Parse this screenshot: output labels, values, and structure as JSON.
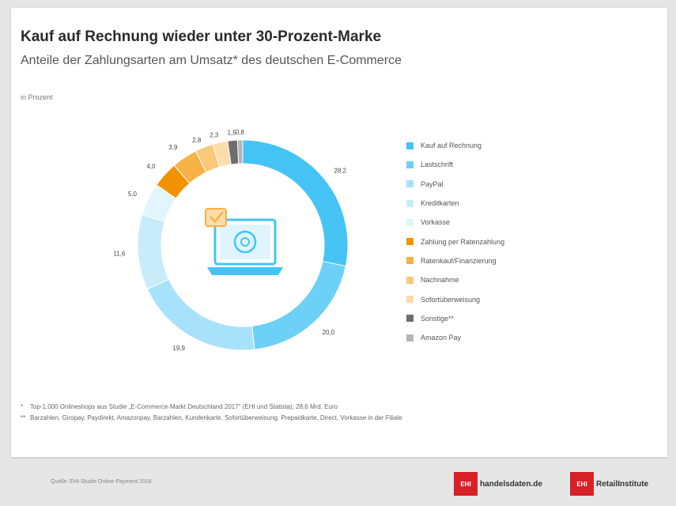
{
  "title": "Kauf auf Rechnung wieder unter 30-Prozent-Marke",
  "subtitle": "Anteile der Zahlungsarten am Umsatz* des deutschen E-Commerce",
  "unit_label": "in Prozent",
  "footnotes": [
    {
      "mark": "*",
      "text": "Top-1.000 Onlineshops aus Studie „E-Commerce-Markt Deutschland 2017“ (EHI und Statista); 28,6 Mrd. Euro"
    },
    {
      "mark": "**",
      "text": "Barzahlen, Giropay, Paydirekt, Amazonpay, Barzahlen, Kundenkarte, Sofortüberweisung, Prepaidkarte, Direct, Vorkasse in der Filiale"
    }
  ],
  "source": "Quelle: EHI-Studie Online-Payment 2018",
  "brands": [
    {
      "box": "EHI",
      "name": "handelsdaten.de"
    },
    {
      "box": "EHI",
      "name": "RetailInstitute"
    }
  ],
  "chart_data": {
    "type": "pie",
    "donut": true,
    "legend_position": "right",
    "categories": [
      "Kauf auf Rechnung",
      "Lastschrift",
      "PayPal",
      "Kreditkarten",
      "Vorkasse",
      "Zahlung per Ratenzahlung",
      "Ratenkauf/Finanzierung",
      "Nachnahme",
      "Sofortüberweisung",
      "Sonstige**",
      "Amazon Pay"
    ],
    "values": [
      28.2,
      20.0,
      19.9,
      11.6,
      5.0,
      4.0,
      3.9,
      2.8,
      2.3,
      1.5,
      0.8
    ],
    "labels": [
      "28,2",
      "20,0",
      "19,9",
      "11,6",
      "5,0",
      "4,0",
      "3,9",
      "2,8",
      "2,3",
      "1,5",
      "0,8"
    ],
    "colors": [
      "#45c3f5",
      "#6dd0f7",
      "#a7e2fa",
      "#c9ecfb",
      "#e2f5fd",
      "#f39200",
      "#f7b144",
      "#f9c879",
      "#fbdcab",
      "#6e6e6e",
      "#b5b5b5"
    ]
  }
}
